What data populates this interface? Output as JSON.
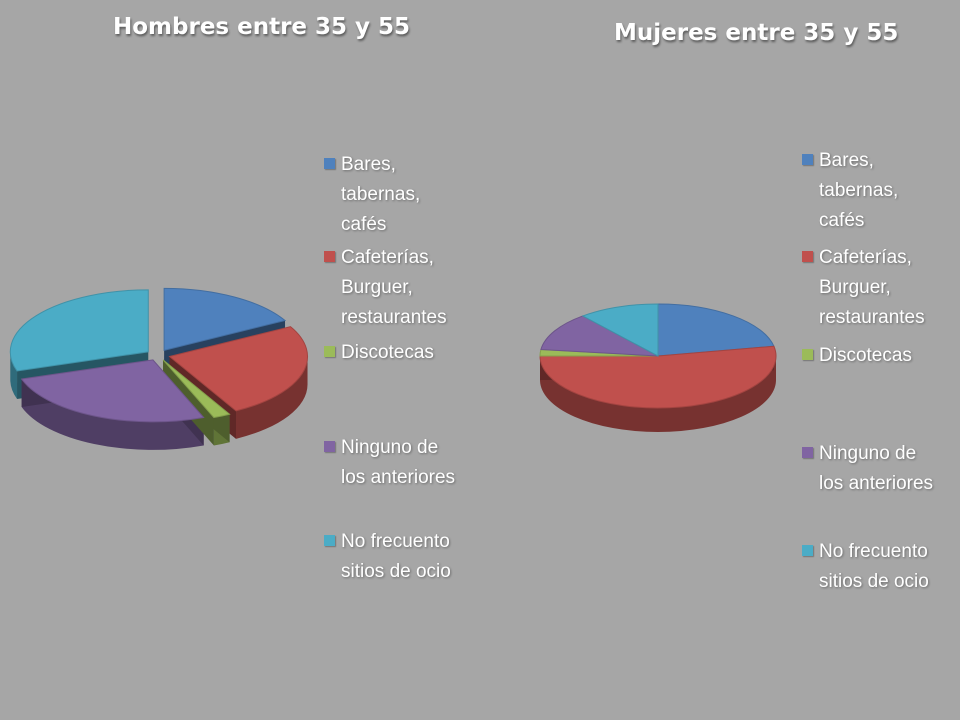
{
  "chart_data": [
    {
      "type": "pie",
      "title": "Hombres entre 35 y 55",
      "categories": [
        "Bares, tabernas, cafés",
        "Cafeterías, Burguer, restaurantes",
        "Discotecas",
        "Ninguno de los anteriores",
        "No frecuento sitios de ocio"
      ],
      "values": [
        17,
        25,
        2,
        26,
        30
      ],
      "legend_position": "right",
      "exploded": true,
      "style": "3d"
    },
    {
      "type": "pie",
      "title": "Mujeres entre 35 y 55",
      "categories": [
        "Bares, tabernas, cafés",
        "Cafeterías, Burguer, restaurantes",
        "Discotecas",
        "Ninguno de los anteriores",
        "No frecuento sitios de ocio"
      ],
      "values": [
        22,
        53,
        2,
        12,
        11
      ],
      "legend_position": "right",
      "exploded": false,
      "style": "3d"
    }
  ],
  "legend": {
    "left": [
      "Bares,\ntabernas,\ncafés",
      "Cafeterías,\nBurguer,\nrestaurantes",
      "Discotecas",
      "Ninguno de\nlos anteriores",
      "No frecuento\nsitios de ocio"
    ],
    "right": [
      "Bares,\ntabernas,\ncafés",
      "Cafeterías,\nBurguer,\nrestaurantes",
      "Discotecas",
      "Ninguno de\nlos anteriores",
      "No frecuento\nsitios de ocio"
    ]
  },
  "colors": [
    "#4f81bd",
    "#c0504d",
    "#9bbb59",
    "#8064a2",
    "#4bacc6"
  ]
}
